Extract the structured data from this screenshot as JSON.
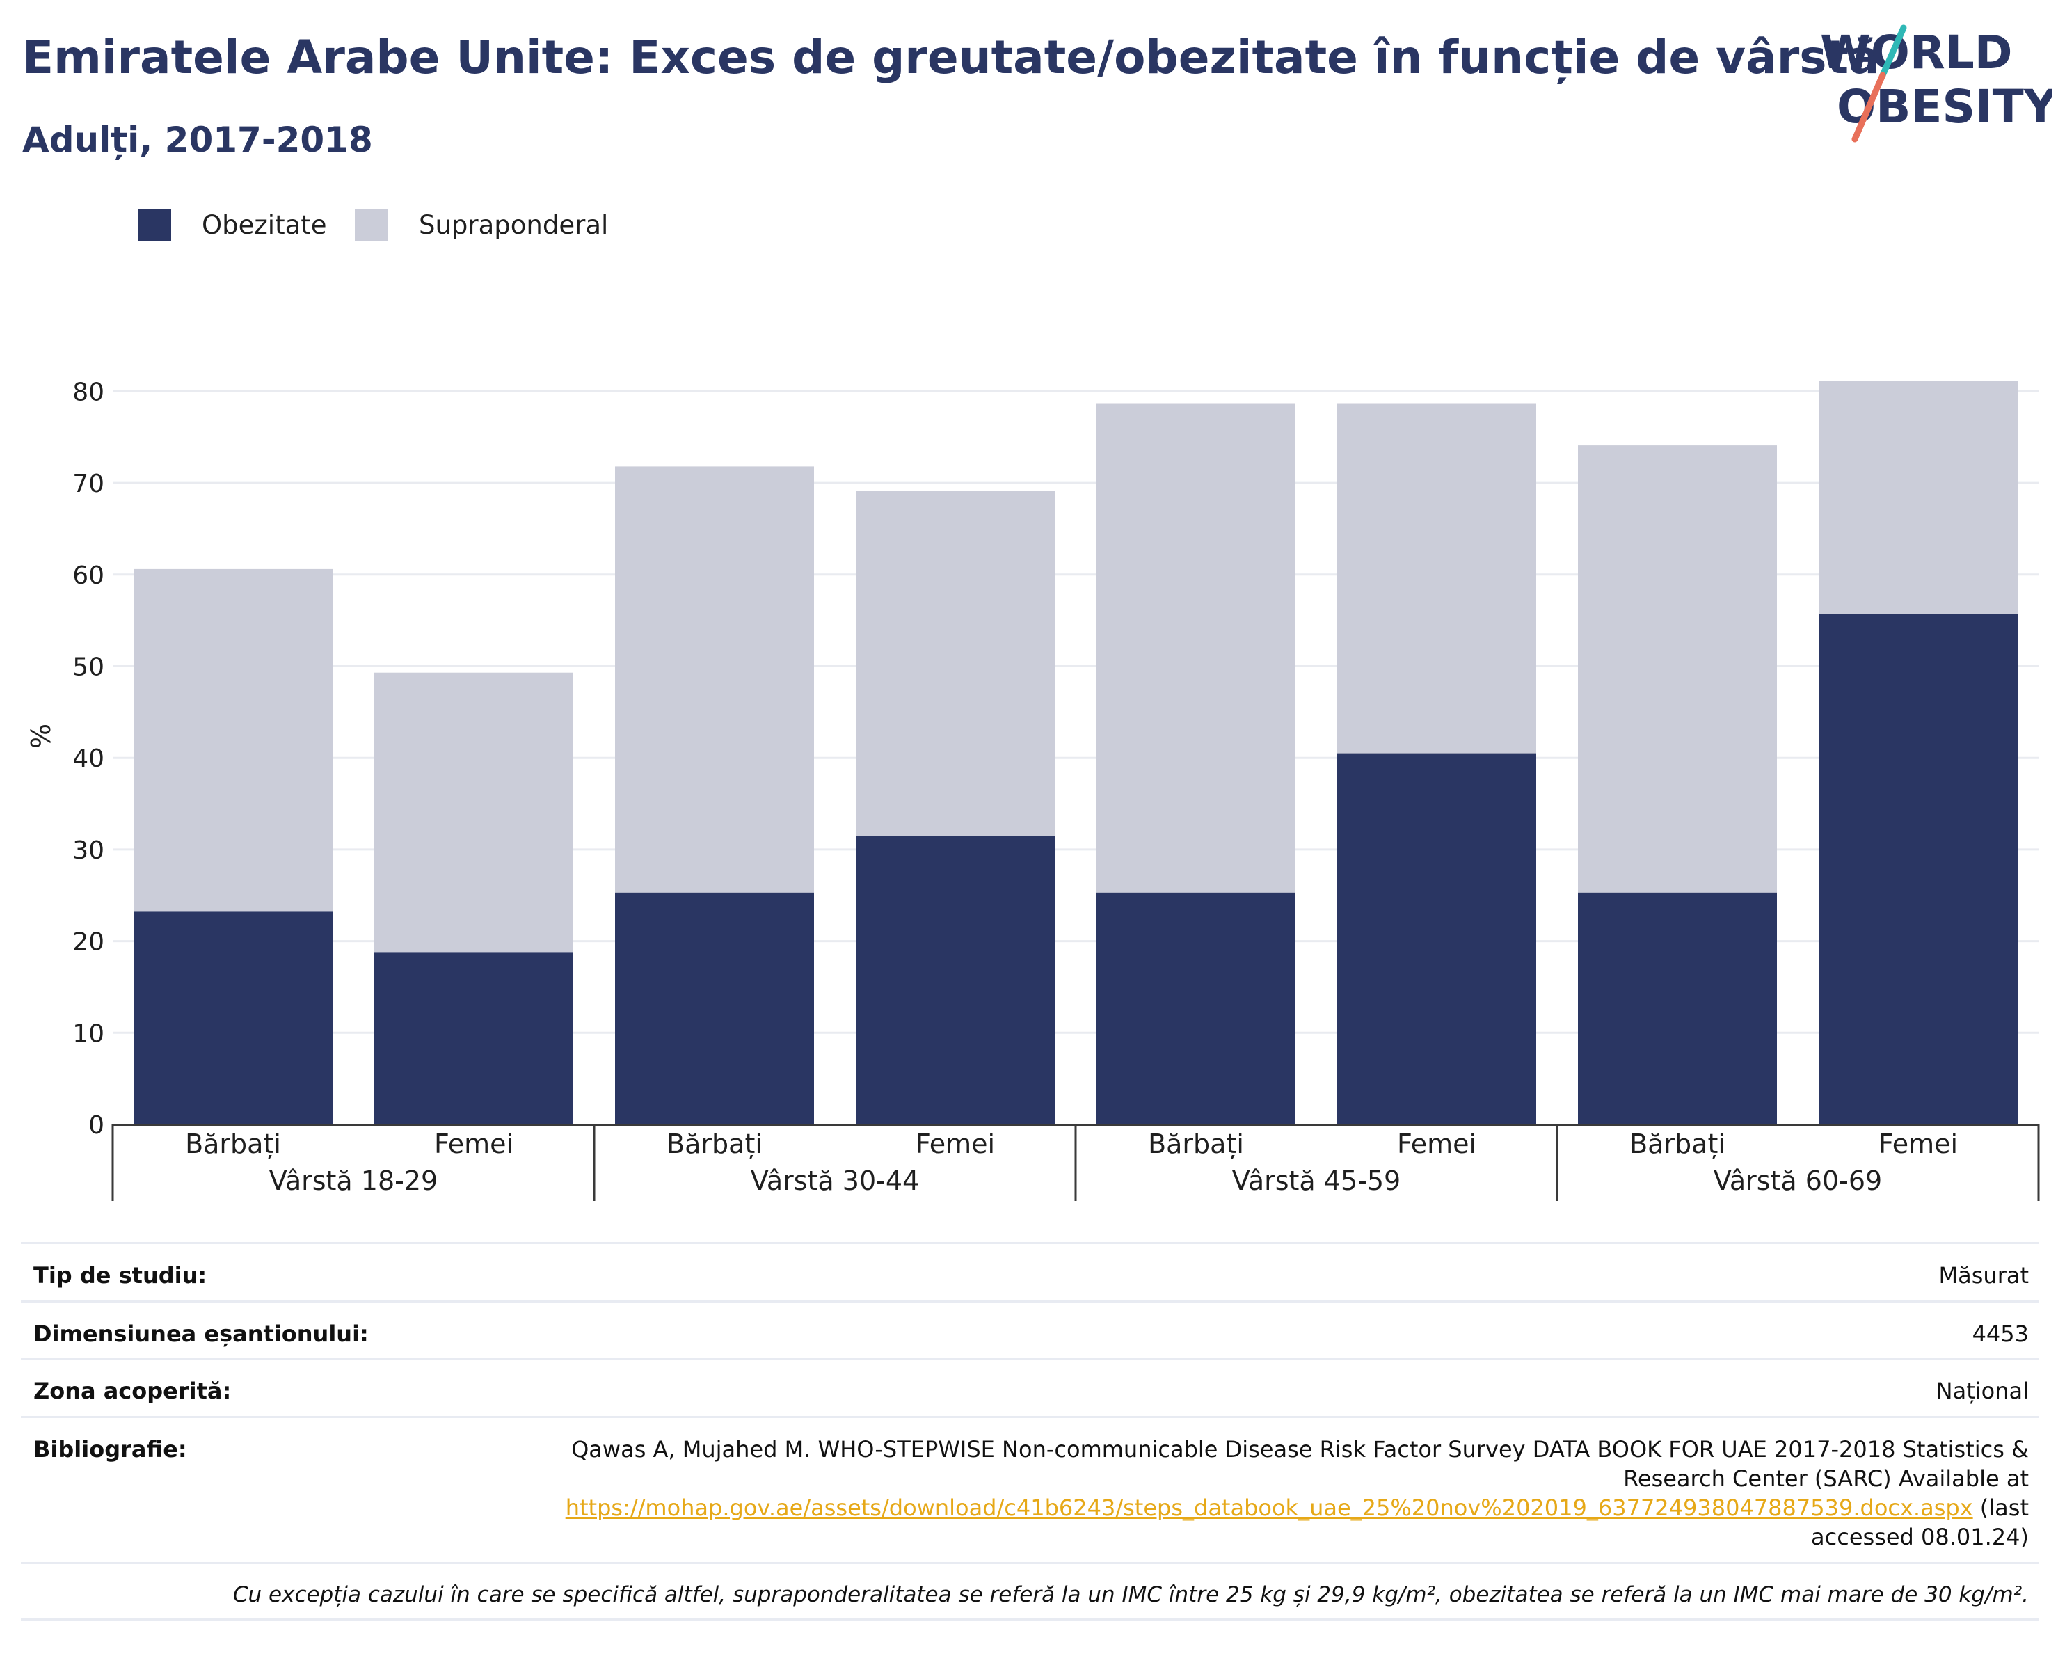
{
  "title": "Emiratele Arabe Unite: Exces de greutate/obezitate în funcție de vârstă",
  "subtitle": "Adulți, 2017-2018",
  "logo": {
    "line1": "WORLD",
    "line2": "OBESITY"
  },
  "colors": {
    "obezitate": "#2a3663",
    "supraponderal": "#cbcdd9",
    "title": "#2a3663",
    "link": "#e6a817"
  },
  "legend": [
    {
      "label": "Obezitate",
      "color": "#2a3663"
    },
    {
      "label": "Supraponderal",
      "color": "#cbcdd9"
    }
  ],
  "chart_data": {
    "type": "bar",
    "stacked": true,
    "ylabel": "%",
    "ylim": [
      0,
      80
    ],
    "yticks": [
      0,
      10,
      20,
      30,
      40,
      50,
      60,
      70,
      80
    ],
    "grid": true,
    "legend_position": "top-left",
    "groups": [
      "Vârstă 18-29",
      "Vârstă 30-44",
      "Vârstă 45-59",
      "Vârstă 60-69"
    ],
    "categories": [
      "Bărbați",
      "Femei",
      "Bărbați",
      "Femei",
      "Bărbați",
      "Femei",
      "Bărbați",
      "Femei"
    ],
    "series": [
      {
        "name": "Obezitate",
        "values": [
          23.2,
          18.8,
          25.3,
          31.5,
          25.3,
          40.5,
          25.3,
          55.7
        ]
      },
      {
        "name": "Supraponderal",
        "values": [
          37.4,
          30.5,
          46.5,
          37.6,
          53.4,
          38.2,
          48.8,
          25.4
        ]
      }
    ]
  },
  "meta": {
    "study_type": {
      "key": "Tip de studiu:",
      "value": "Măsurat"
    },
    "sample_size": {
      "key": "Dimensiunea eșantionului:",
      "value": "4453"
    },
    "coverage": {
      "key": "Zona acoperită:",
      "value": "Național"
    },
    "bibliography": {
      "key": "Bibliografie:",
      "text_line1": "Qawas A, Mujahed M. WHO-STEPWISE Non-communicable Disease Risk Factor Survey DATA BOOK FOR UAE 2017-2018 Statistics &",
      "text_line2": "Research Center (SARC) Available at",
      "link": "https://mohap.gov.ae/assets/download/c41b6243/steps_databook_uae_25%20nov%202019_637724938047887539.docx.aspx",
      "after_link": "(last",
      "text_line4": "accessed 08.01.24)"
    },
    "note": "Cu excepția cazului în care se specifică altfel, supraponderalitatea se referă la un IMC între 25 kg și 29,9 kg/m², obezitatea se referă la un IMC mai mare de 30 kg/m²."
  }
}
